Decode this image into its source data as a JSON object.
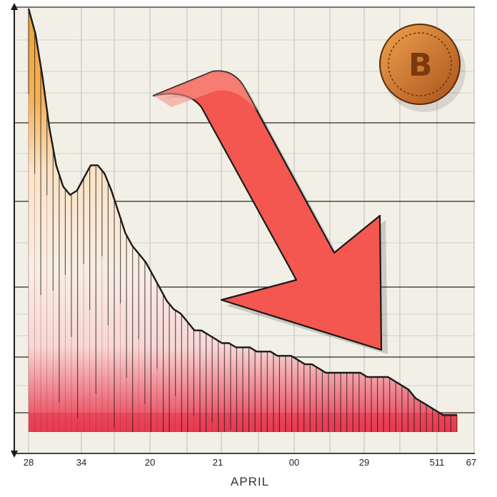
{
  "chart_data": {
    "type": "area",
    "title": "",
    "xlabel": "APRIL",
    "ylabel": "",
    "x_tick_labels": [
      "28",
      "34",
      "20",
      "21",
      "00",
      "29",
      "511",
      "67"
    ],
    "x": [
      0,
      2,
      4,
      6,
      8,
      10,
      12,
      14,
      16,
      18,
      20,
      22,
      24,
      26,
      28,
      30,
      32,
      34,
      36,
      38,
      40,
      42,
      44,
      46,
      48,
      50,
      52,
      54,
      56,
      58,
      60,
      62,
      64,
      66,
      68,
      70,
      72,
      74,
      76,
      78,
      80,
      82,
      84,
      86,
      88,
      90,
      92,
      94,
      96,
      98,
      100,
      102,
      104,
      106,
      108,
      110,
      112,
      114,
      116,
      118,
      120,
      122,
      124
    ],
    "y": [
      100,
      94,
      84,
      72,
      63,
      58,
      56,
      57,
      60,
      63,
      63,
      61,
      57,
      52,
      47,
      44,
      42,
      40,
      37,
      34,
      31,
      29,
      28,
      26,
      24,
      24,
      23,
      22,
      21,
      21,
      20,
      20,
      20,
      19,
      19,
      19,
      18,
      18,
      18,
      17,
      16,
      16,
      15,
      14,
      14,
      14,
      14,
      14,
      14,
      13,
      13,
      13,
      13,
      12,
      11,
      10,
      8,
      7,
      6,
      5,
      4,
      4,
      4
    ],
    "xlim": [
      0,
      124
    ],
    "ylim": [
      0,
      100
    ],
    "grid": true,
    "legend": "none",
    "annotation": "downward trend arrow",
    "colors": {
      "fill_top": "#f4a02c",
      "fill_mid": "#fbe3c6",
      "fill_bottom": "#e8384f",
      "arrow": "#f4574f",
      "background": "#f2f0e6",
      "grid": "#c8c8c8",
      "coin": "#d07a2e"
    }
  },
  "icons": {
    "coin": "bitcoin-coin-icon",
    "coin_symbol": "B"
  }
}
